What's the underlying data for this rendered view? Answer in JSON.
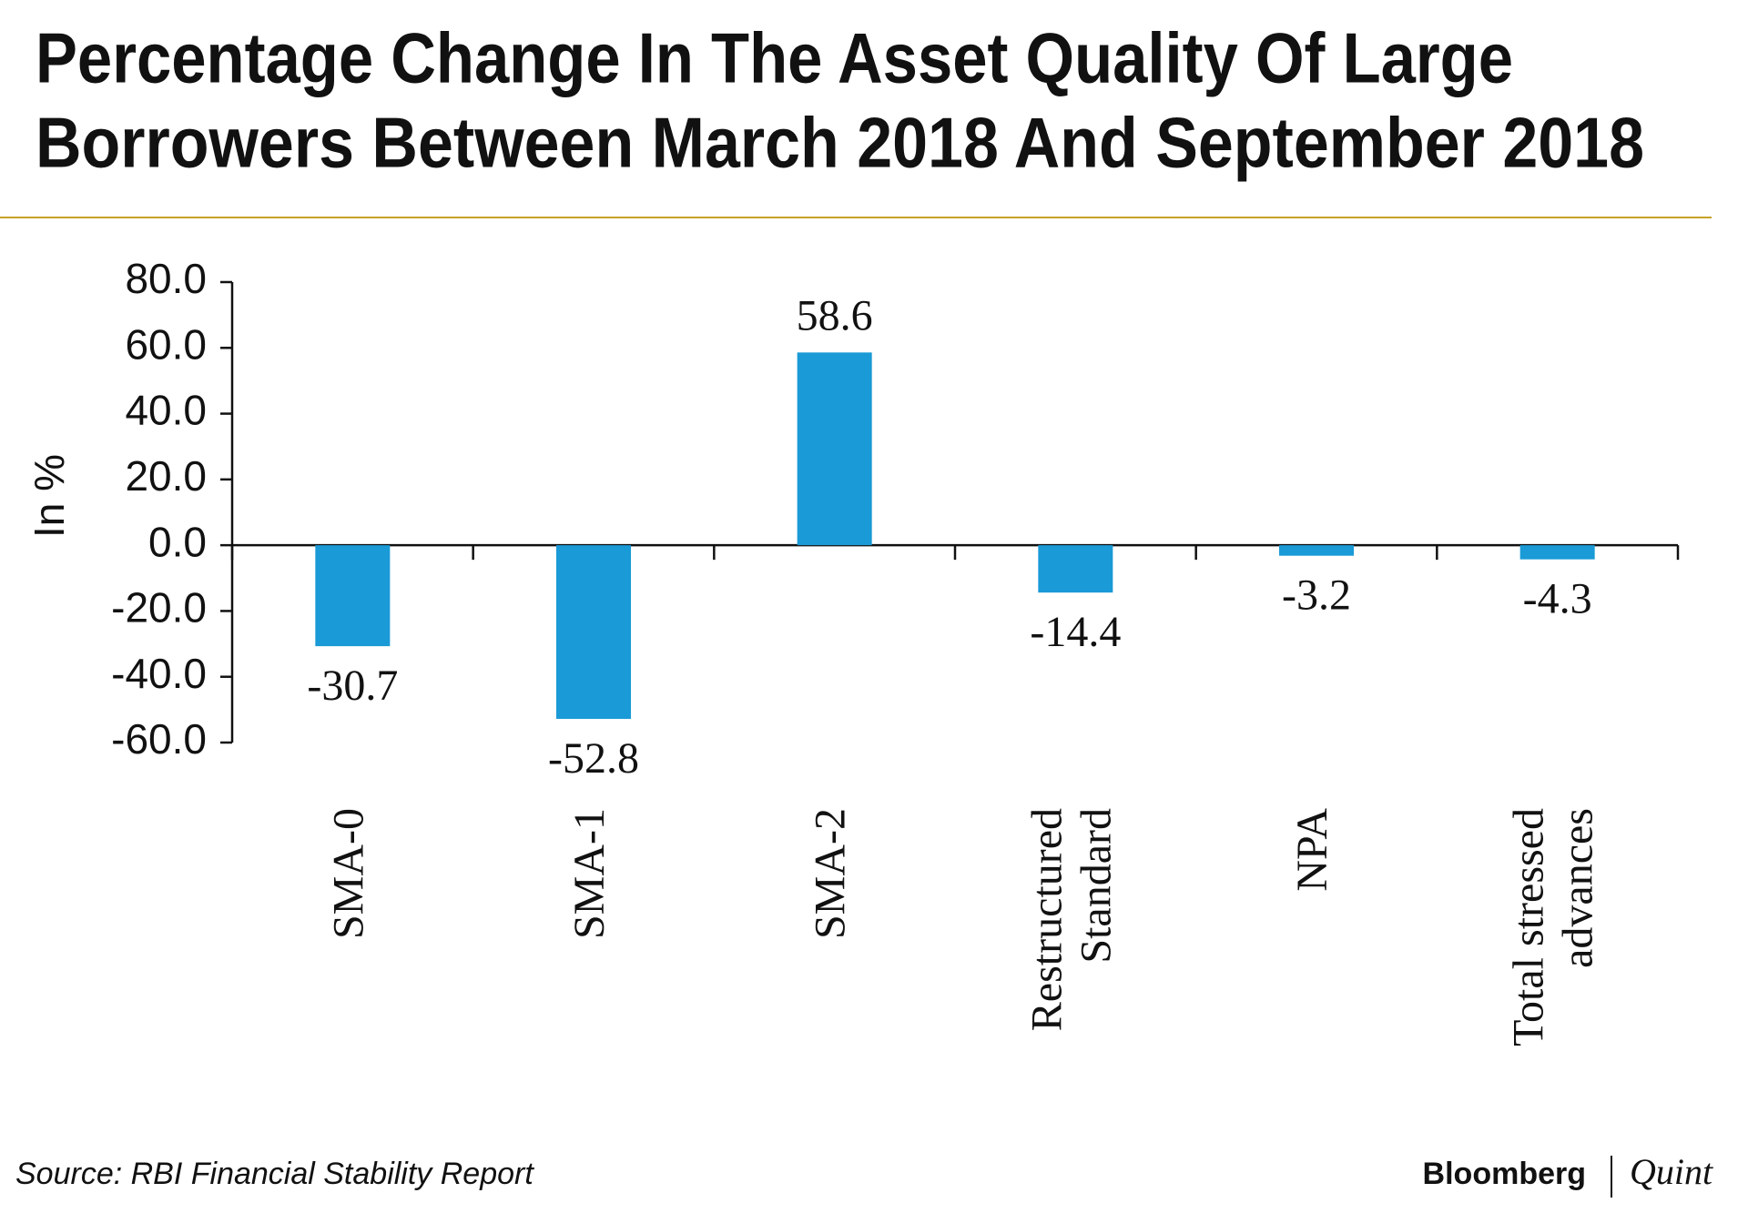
{
  "chart_data": {
    "type": "bar",
    "title": [
      "Percentage Change In The Asset Quality Of Large",
      "Borrowers Between March 2018 And September 2018"
    ],
    "y_label": "In %",
    "categories": [
      [
        "SMA-0"
      ],
      [
        "SMA-1"
      ],
      [
        "SMA-2"
      ],
      [
        "Restructured",
        "Standard"
      ],
      [
        "NPA"
      ],
      [
        "Total stressed",
        "advances"
      ]
    ],
    "values": [
      -30.7,
      -52.8,
      58.6,
      -14.4,
      -3.2,
      -4.3
    ],
    "color": "#1a9ad6",
    "ylim": [
      -60,
      80
    ],
    "yticks": [
      {
        "value": -60,
        "label": "-60.0"
      },
      {
        "value": -40,
        "label": "-40.0"
      },
      {
        "value": -20,
        "label": "-20.0"
      },
      {
        "value": 0,
        "label": "0.0"
      },
      {
        "value": 20,
        "label": "20.0"
      },
      {
        "value": 40,
        "label": "40.0"
      },
      {
        "value": 60,
        "label": "60.0"
      },
      {
        "value": 80,
        "label": "80.0"
      }
    ],
    "grid": false
  },
  "footer": {
    "source": "Source: RBI Financial Stability Report",
    "logo": [
      "Bloomberg",
      "Quint"
    ]
  }
}
